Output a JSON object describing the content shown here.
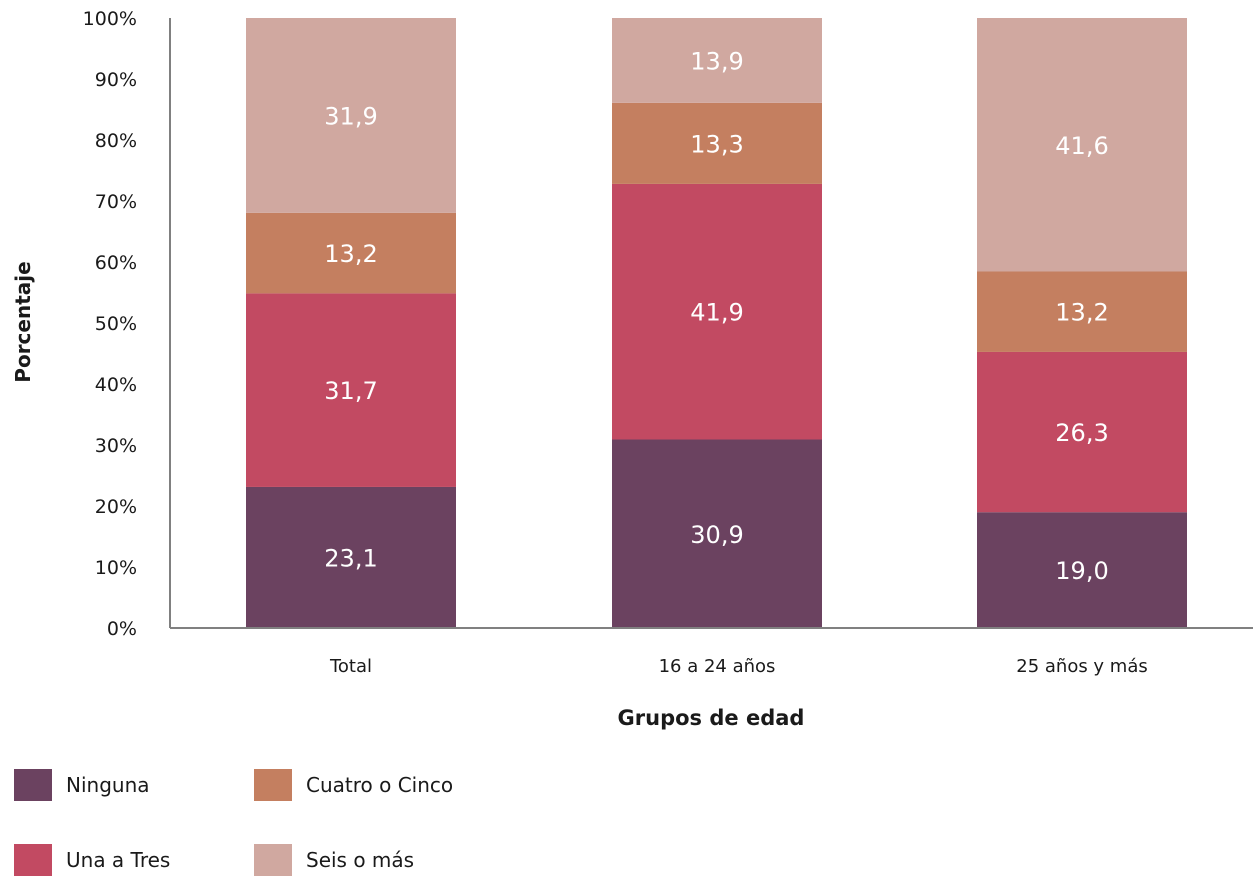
{
  "chart_data": {
    "type": "bar",
    "stacked": true,
    "categories": [
      "Total",
      "16 a 24 años",
      "25 años y más"
    ],
    "series": [
      {
        "name": "Ninguna",
        "color": "#6B4260",
        "values": [
          23.1,
          30.9,
          19.0
        ],
        "labels": [
          "23,1",
          "30,9",
          "19,0"
        ]
      },
      {
        "name": "Una a Tres",
        "color": "#C24A62",
        "values": [
          31.7,
          41.9,
          26.3
        ],
        "labels": [
          "31,7",
          "41,9",
          "26,3"
        ]
      },
      {
        "name": "Cuatro o Cinco",
        "color": "#C47F60",
        "values": [
          13.2,
          13.3,
          13.2
        ],
        "labels": [
          "13,2",
          "13,3",
          "13,2"
        ]
      },
      {
        "name": "Seis o más",
        "color": "#D0A8A0",
        "values": [
          31.9,
          13.9,
          41.6
        ],
        "labels": [
          "31,9",
          "13,9",
          "41,6"
        ]
      }
    ],
    "ylim": [
      0,
      100
    ],
    "yticks": [
      "0%",
      "10%",
      "20%",
      "30%",
      "40%",
      "50%",
      "60%",
      "70%",
      "80%",
      "90%",
      "100%"
    ],
    "ylabel": "Porcentaje",
    "xlabel": "Grupos de edad",
    "grid": false,
    "legend_position": "bottom-left"
  }
}
